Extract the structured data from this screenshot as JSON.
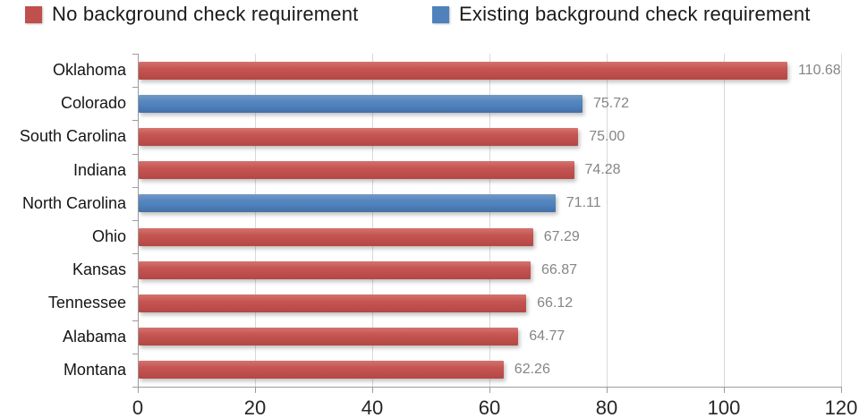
{
  "chart_data": {
    "type": "bar",
    "orientation": "horizontal",
    "title": "",
    "xlabel": "",
    "ylabel": "",
    "categories": [
      "Oklahoma",
      "Colorado",
      "South Carolina",
      "Indiana",
      "North Carolina",
      "Ohio",
      "Kansas",
      "Tennessee",
      "Alabama",
      "Montana"
    ],
    "values": [
      110.68,
      75.72,
      75.0,
      74.28,
      71.11,
      67.29,
      66.87,
      66.12,
      64.77,
      62.26
    ],
    "value_labels": [
      "110.68",
      "75.72",
      "75.00",
      "74.28",
      "71.11",
      "67.29",
      "66.87",
      "66.12",
      "64.77",
      "62.26"
    ],
    "series_index": [
      0,
      1,
      0,
      0,
      1,
      0,
      0,
      0,
      0,
      0
    ],
    "series": [
      {
        "name": "No background check requirement",
        "color": "#c0504d"
      },
      {
        "name": "Existing background check requirement",
        "color": "#4f81bd"
      }
    ],
    "xlim": [
      0,
      120
    ],
    "x_ticks": [
      "0",
      "20",
      "40",
      "60",
      "80",
      "100",
      "120"
    ],
    "grid": "vertical gridlines every 20",
    "legend_position": "top"
  },
  "colors": {
    "gridline": "#d9d9d9",
    "axis": "#9c9c9c",
    "value_label": "#858585",
    "category_label": "#151515"
  }
}
